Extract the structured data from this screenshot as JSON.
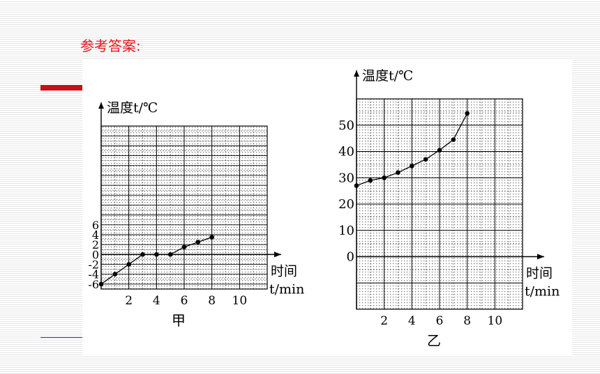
{
  "heading": "参考答案:",
  "colors": {
    "heading": "#e8141c",
    "accent_bar": "#c8101a"
  },
  "chart_data": [
    {
      "type": "scatter",
      "caption": "甲",
      "ylabel": "温度t/℃",
      "xlabel_line1": "时间",
      "xlabel_line2": "t/min",
      "xlim": [
        0,
        12
      ],
      "ylim": [
        -7,
        26
      ],
      "xticks": [
        2,
        4,
        6,
        8,
        10
      ],
      "yticks": [
        6,
        4,
        2,
        0,
        -2,
        -4,
        -6
      ],
      "ytick_labels": [
        "6",
        "4",
        "2",
        "0",
        "-2",
        "-4",
        "-6"
      ],
      "grid": true,
      "connect_points": true,
      "x": [
        0,
        1,
        2,
        3,
        4,
        5,
        6,
        7,
        8
      ],
      "y": [
        -6,
        -4,
        -2,
        0,
        0,
        0,
        1.5,
        2.5,
        3.5
      ]
    },
    {
      "type": "scatter",
      "caption": "乙",
      "ylabel": "温度t/℃",
      "xlabel_line1": "时间",
      "xlabel_line2": "t/min",
      "xlim": [
        0,
        12
      ],
      "ylim": [
        -20,
        60
      ],
      "xticks": [
        2,
        4,
        6,
        8,
        10
      ],
      "yticks": [
        50,
        40,
        30,
        20,
        10,
        0
      ],
      "ytick_labels": [
        "50",
        "40",
        "30",
        "20",
        "10",
        "0"
      ],
      "grid": true,
      "connect_points": true,
      "x": [
        0,
        1,
        2,
        3,
        4,
        5,
        6,
        7,
        8
      ],
      "y": [
        27,
        29,
        30,
        32,
        34.5,
        37,
        40.5,
        44.5,
        54.5
      ]
    }
  ]
}
